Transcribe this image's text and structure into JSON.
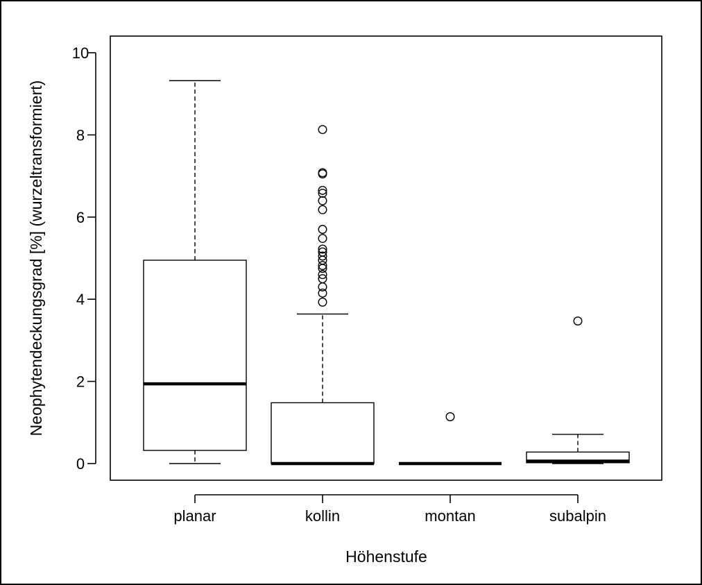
{
  "chart_data": {
    "type": "boxplot",
    "xlabel": "Höhenstufe",
    "ylabel": "Neophytendeckungsgrad [%] (wurzeltransformiert)",
    "ylim": [
      -0.4,
      10.4
    ],
    "yticks": [
      0,
      2,
      4,
      6,
      8,
      10
    ],
    "grid": false,
    "categories": [
      "planar",
      "kollin",
      "montan",
      "subalpin"
    ],
    "boxes": [
      {
        "category": "planar",
        "whisker_low": 0.0,
        "q1": 0.32,
        "median": 1.94,
        "q3": 4.95,
        "whisker_high": 9.32,
        "outliers": []
      },
      {
        "category": "kollin",
        "whisker_low": 0.0,
        "q1": 0.0,
        "median": 0.0,
        "q3": 1.48,
        "whisker_high": 3.64,
        "outliers": [
          3.93,
          4.15,
          4.3,
          4.5,
          4.6,
          4.75,
          4.82,
          4.95,
          5.05,
          5.15,
          5.22,
          5.48,
          5.7,
          6.18,
          6.4,
          6.58,
          6.65,
          7.05,
          7.08,
          8.13
        ]
      },
      {
        "category": "montan",
        "whisker_low": 0.0,
        "q1": 0.0,
        "median": 0.0,
        "q3": 0.0,
        "whisker_high": 0.0,
        "outliers": [
          1.14
        ]
      },
      {
        "category": "subalpin",
        "whisker_low": 0.0,
        "q1": 0.02,
        "median": 0.06,
        "q3": 0.28,
        "whisker_high": 0.71,
        "outliers": [
          3.47
        ]
      }
    ]
  }
}
